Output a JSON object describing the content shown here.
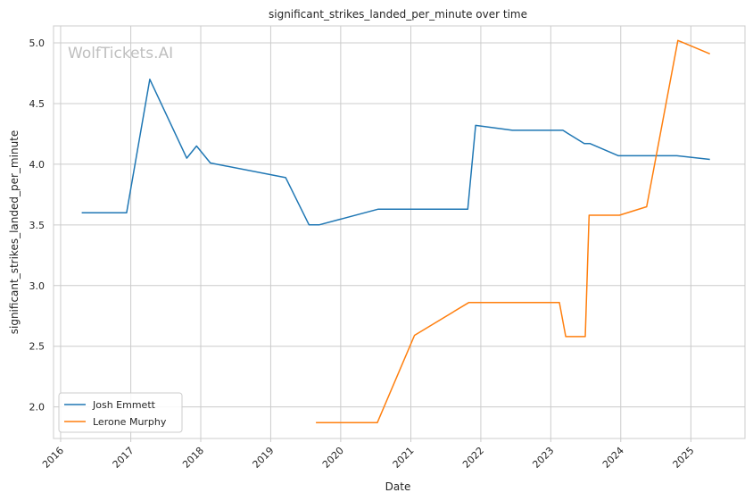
{
  "chart_data": {
    "type": "line",
    "title": "significant_strikes_landed_per_minute over time",
    "xlabel": "Date",
    "ylabel": "significant_strikes_landed_per_minute",
    "watermark": "WolfTickets.AI",
    "x_ticks": [
      "2016",
      "2017",
      "2018",
      "2019",
      "2020",
      "2021",
      "2022",
      "2023",
      "2024",
      "2025"
    ],
    "y_ticks": [
      "2.0",
      "2.5",
      "3.0",
      "3.5",
      "4.0",
      "4.5",
      "5.0"
    ],
    "xlim": [
      "2015-11-25",
      "2025-10-10"
    ],
    "ylim": [
      1.74,
      5.14
    ],
    "grid": true,
    "legend": "bottom-left",
    "series": [
      {
        "name": "Josh Emmett",
        "color": "#1f77b4",
        "points": [
          [
            "2016-04-20",
            3.6
          ],
          [
            "2016-12-10",
            3.6
          ],
          [
            "2017-04-10",
            4.7
          ],
          [
            "2017-10-20",
            4.05
          ],
          [
            "2017-12-10",
            4.15
          ],
          [
            "2018-02-20",
            4.01
          ],
          [
            "2019-03-20",
            3.89
          ],
          [
            "2019-07-20",
            3.5
          ],
          [
            "2019-09-10",
            3.5
          ],
          [
            "2020-07-15",
            3.63
          ],
          [
            "2021-10-25",
            3.63
          ],
          [
            "2021-12-05",
            4.32
          ],
          [
            "2022-06-15",
            4.28
          ],
          [
            "2023-03-05",
            4.28
          ],
          [
            "2023-06-25",
            4.17
          ],
          [
            "2023-07-25",
            4.17
          ],
          [
            "2023-12-20",
            4.07
          ],
          [
            "2024-10-20",
            4.07
          ],
          [
            "2025-04-10",
            4.04
          ]
        ]
      },
      {
        "name": "Lerone Murphy",
        "color": "#ff7f0e",
        "points": [
          [
            "2019-08-25",
            1.87
          ],
          [
            "2020-07-10",
            1.87
          ],
          [
            "2021-01-20",
            2.59
          ],
          [
            "2021-10-30",
            2.86
          ],
          [
            "2023-02-15",
            2.86
          ],
          [
            "2023-03-20",
            2.58
          ],
          [
            "2023-06-30",
            2.58
          ],
          [
            "2023-07-20",
            3.58
          ],
          [
            "2023-12-25",
            3.58
          ],
          [
            "2024-05-15",
            3.65
          ],
          [
            "2024-10-25",
            5.02
          ],
          [
            "2025-04-10",
            4.91
          ]
        ]
      }
    ]
  }
}
